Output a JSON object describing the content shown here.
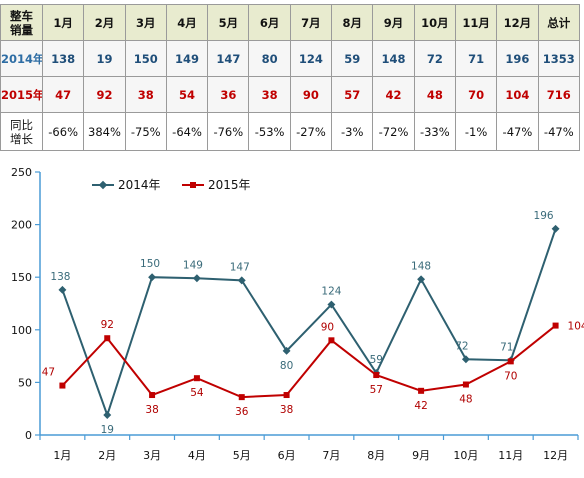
{
  "table": {
    "corner_line1": "整车",
    "corner_line2": "销量",
    "months": [
      "1月",
      "2月",
      "3月",
      "4月",
      "5月",
      "6月",
      "7月",
      "8月",
      "9月",
      "10月",
      "11月",
      "12月",
      "总计"
    ],
    "row_2014": {
      "label": "2014年",
      "values": [
        "138",
        "19",
        "150",
        "149",
        "147",
        "80",
        "124",
        "59",
        "148",
        "72",
        "71",
        "196",
        "1353"
      ]
    },
    "row_2015": {
      "label": "2015年",
      "values": [
        "47",
        "92",
        "38",
        "54",
        "36",
        "38",
        "90",
        "57",
        "42",
        "48",
        "70",
        "104",
        "716"
      ]
    },
    "row_yoy": {
      "label_line1": "同比",
      "label_line2": "增长",
      "values": [
        "-66%",
        "384%",
        "-75%",
        "-64%",
        "-76%",
        "-53%",
        "-27%",
        "-3%",
        "-72%",
        "-33%",
        "-1%",
        "-47%",
        "-47%"
      ]
    }
  },
  "chart_data": {
    "type": "line",
    "categories": [
      "1月",
      "2月",
      "3月",
      "4月",
      "5月",
      "6月",
      "7月",
      "8月",
      "9月",
      "10月",
      "11月",
      "12月"
    ],
    "series": [
      {
        "name": "2014年",
        "values": [
          138,
          19,
          150,
          149,
          147,
          80,
          124,
          59,
          148,
          72,
          71,
          196
        ],
        "color": "#2e6070"
      },
      {
        "name": "2015年",
        "values": [
          47,
          92,
          38,
          54,
          36,
          38,
          90,
          57,
          42,
          48,
          70,
          104
        ],
        "color": "#c00000"
      }
    ],
    "ylim": [
      0,
      250
    ],
    "yticks": [
      0,
      50,
      100,
      150,
      200,
      250
    ],
    "legend_position": "top-left",
    "grid": false,
    "axis_color": "#4a9bd6"
  }
}
